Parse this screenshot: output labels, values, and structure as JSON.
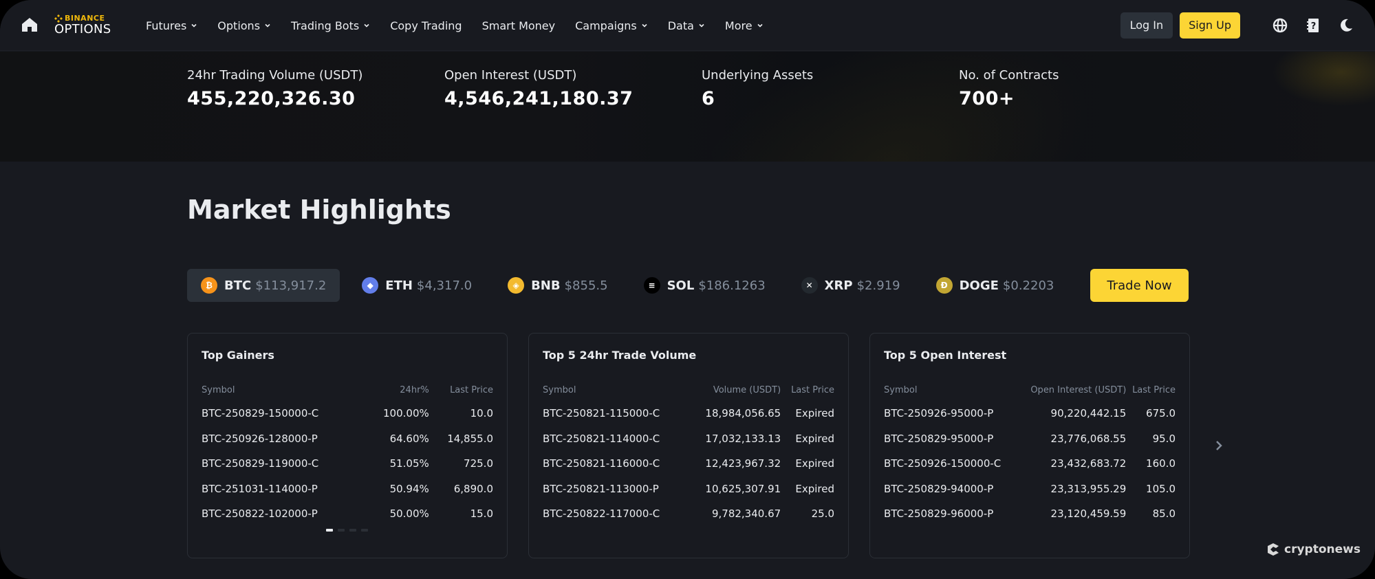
{
  "nav": {
    "logo_top": "BINANCE",
    "logo_bottom": "OPTIONS",
    "items": [
      {
        "label": "Futures",
        "dropdown": true
      },
      {
        "label": "Options",
        "dropdown": true
      },
      {
        "label": "Trading Bots",
        "dropdown": true
      },
      {
        "label": "Copy Trading",
        "dropdown": false
      },
      {
        "label": "Smart Money",
        "dropdown": false
      },
      {
        "label": "Campaigns",
        "dropdown": true
      },
      {
        "label": "Data",
        "dropdown": true
      },
      {
        "label": "More",
        "dropdown": true
      }
    ],
    "login_label": "Log In",
    "signup_label": "Sign Up",
    "icons": [
      "globe-icon",
      "help-book-icon",
      "moon-icon"
    ]
  },
  "stats": [
    {
      "label": "24hr Trading Volume (USDT)",
      "value": "455,220,326.30"
    },
    {
      "label": "Open Interest (USDT)",
      "value": "4,546,241,180.37"
    },
    {
      "label": "Underlying Assets",
      "value": "6"
    },
    {
      "label": "No. of Contracts",
      "value": "700+"
    }
  ],
  "market_highlights": {
    "title": "Market Highlights",
    "assets": [
      {
        "symbol": "BTC",
        "price": "$113,917.2",
        "active": true,
        "color": "#f7931a",
        "glyph": "₿"
      },
      {
        "symbol": "ETH",
        "price": "$4,317.0",
        "active": false,
        "color": "#627eea",
        "glyph": "◆"
      },
      {
        "symbol": "BNB",
        "price": "$855.5",
        "active": false,
        "color": "#f3ba2f",
        "glyph": "◈"
      },
      {
        "symbol": "SOL",
        "price": "$186.1263",
        "active": false,
        "color": "#000000",
        "glyph": "≡"
      },
      {
        "symbol": "XRP",
        "price": "$2.919",
        "active": false,
        "color": "#23292f",
        "glyph": "✕"
      },
      {
        "symbol": "DOGE",
        "price": "$0.2203",
        "active": false,
        "color": "#c2a633",
        "glyph": "Ð"
      }
    ],
    "trade_now_label": "Trade Now",
    "cards": [
      {
        "title": "Top Gainers",
        "columns": [
          "Symbol",
          "24hr%",
          "Last Price"
        ],
        "rows": [
          [
            "BTC-250829-150000-C",
            "100.00%",
            "10.0"
          ],
          [
            "BTC-250926-128000-P",
            "64.60%",
            "14,855.0"
          ],
          [
            "BTC-250829-119000-C",
            "51.05%",
            "725.0"
          ],
          [
            "BTC-251031-114000-P",
            "50.94%",
            "6,890.0"
          ],
          [
            "BTC-250822-102000-P",
            "50.00%",
            "15.0"
          ]
        ]
      },
      {
        "title": "Top 5 24hr Trade Volume",
        "columns": [
          "Symbol",
          "Volume (USDT)",
          "Last Price"
        ],
        "rows": [
          [
            "BTC-250821-115000-C",
            "18,984,056.65",
            "Expired"
          ],
          [
            "BTC-250821-114000-C",
            "17,032,133.13",
            "Expired"
          ],
          [
            "BTC-250821-116000-C",
            "12,423,967.32",
            "Expired"
          ],
          [
            "BTC-250821-113000-P",
            "10,625,307.91",
            "Expired"
          ],
          [
            "BTC-250822-117000-C",
            "9,782,340.67",
            "25.0"
          ]
        ]
      },
      {
        "title": "Top 5 Open Interest",
        "columns": [
          "Symbol",
          "Open Interest (USDT)",
          "Last Price"
        ],
        "rows": [
          [
            "BTC-250926-95000-P",
            "90,220,442.15",
            "675.0"
          ],
          [
            "BTC-250829-95000-P",
            "23,776,068.55",
            "95.0"
          ],
          [
            "BTC-250926-150000-C",
            "23,432,683.72",
            "160.0"
          ],
          [
            "BTC-250829-94000-P",
            "23,313,955.29",
            "105.0"
          ],
          [
            "BTC-250829-96000-P",
            "23,120,459.59",
            "85.0"
          ]
        ]
      }
    ],
    "pagination": {
      "count": 4,
      "active": 0
    }
  },
  "watermark": "cryptonews",
  "colors": {
    "accent": "#fcd535",
    "brand": "#f0b90b",
    "bg": "#181a20",
    "muted": "#848e9c"
  }
}
